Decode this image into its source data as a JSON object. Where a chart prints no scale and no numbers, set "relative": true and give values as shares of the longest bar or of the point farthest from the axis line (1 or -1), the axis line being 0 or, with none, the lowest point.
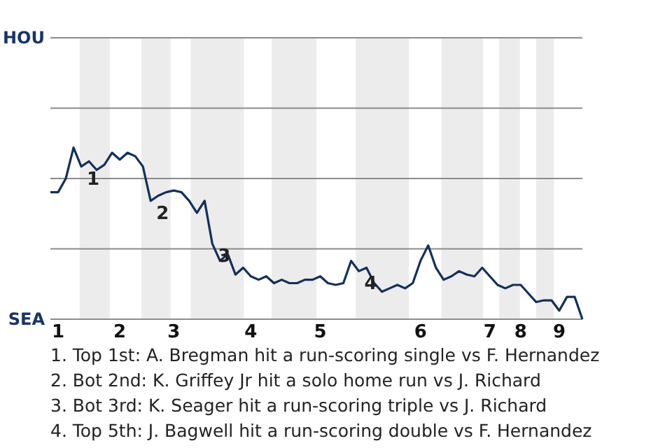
{
  "chart_data": {
    "type": "line",
    "relative": true,
    "categories": [
      null,
      "1",
      null,
      null,
      null,
      null,
      null,
      null,
      null,
      "2",
      null,
      null,
      null,
      null,
      null,
      null,
      "3",
      null,
      null,
      null,
      null,
      null,
      null,
      null,
      null,
      null,
      "4",
      null,
      null,
      null,
      null,
      null,
      null,
      null,
      null,
      "5",
      null,
      null,
      null,
      null,
      null,
      null,
      null,
      null,
      null,
      null,
      null,
      null,
      "6",
      null,
      null,
      null,
      null,
      null,
      null,
      null,
      null,
      "7",
      null,
      null,
      null,
      "8",
      null,
      null,
      null,
      null,
      "9",
      null,
      null,
      null
    ],
    "series": [
      {
        "color": "#12305c",
        "values": [
          0.74,
          0.74,
          0.82,
          1,
          0.89,
          0.92,
          0.87,
          0.9,
          0.97,
          0.93,
          0.97,
          0.95,
          0.89,
          0.69,
          0.72,
          0.74,
          0.75,
          0.74,
          0.69,
          0.62,
          0.69,
          0.44,
          0.34,
          0.38,
          0.26,
          0.3,
          0.25,
          0.23,
          0.25,
          0.21,
          0.23,
          0.21,
          0.21,
          0.23,
          0.23,
          0.25,
          0.21,
          0.2,
          0.21,
          0.34,
          0.28,
          0.3,
          0.21,
          0.16,
          0.18,
          0.2,
          0.18,
          0.21,
          0.34,
          0.43,
          0.3,
          0.23,
          0.25,
          0.28,
          0.26,
          0.25,
          0.3,
          0.25,
          0.2,
          0.18,
          0.2,
          0.2,
          0.15,
          0.1,
          0.11,
          0.11,
          0.05,
          0.13,
          0.13,
          0
        ]
      }
    ],
    "line_style": "solid",
    "marker": "none",
    "ref_lines": [
      {
        "axis": "y",
        "value": 0,
        "label": "SEA",
        "color": "#8c8c8c"
      },
      {
        "axis": "y",
        "value": 0.41,
        "color": "#8c8c8c"
      },
      {
        "axis": "y",
        "value": 0.82,
        "color": "#8c8c8c"
      },
      {
        "axis": "y",
        "value": 1.23,
        "color": "#8c8c8c"
      },
      {
        "axis": "y",
        "value": 1.64,
        "label": "HOU",
        "color": "#8c8c8c"
      }
    ],
    "annotations": [
      {
        "text": "1",
        "y": 0.89
      },
      {
        "text": "2",
        "y": 0.69
      },
      {
        "text": "3",
        "y": 0.44
      },
      {
        "text": "4",
        "y": 0.28
      },
      "1. Top 1st: A. Bregman hit a run-scoring single vs F. Hernandez",
      "2. Bot 2nd: K. Griffey Jr hit a solo home run vs J. Richard",
      "3. Bot 3rd: K. Seager hit a run-scoring triple vs J. Richard",
      "4. Top 5th: J. Bagwell hit a run-scoring double vs F. Hernandez"
    ]
  }
}
